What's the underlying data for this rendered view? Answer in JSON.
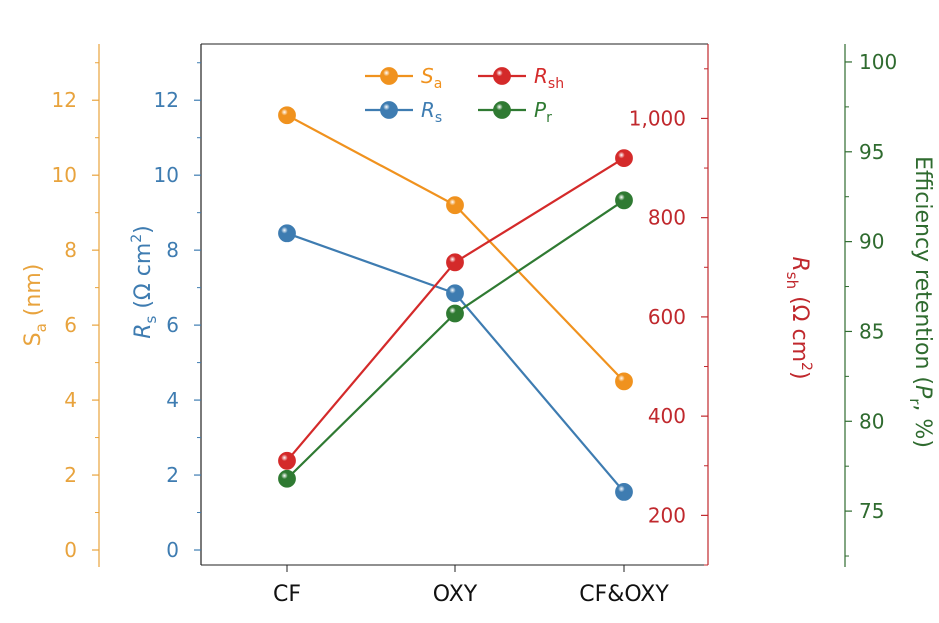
{
  "chart_data": {
    "type": "line",
    "categories": [
      "CF",
      "OXY",
      "CF&OXY"
    ],
    "axes": {
      "sa": {
        "label_main": "S",
        "label_sub": "a",
        "label_rest": " (nm)",
        "range": [
          -0.4,
          13.5
        ],
        "ticks": [
          "0",
          "2",
          "4",
          "6",
          "8",
          "10",
          "12"
        ],
        "color": "#E8A33D"
      },
      "rs": {
        "label_main": "R",
        "label_sub": "s",
        "label_rest_a": " (Ω cm",
        "label_sup": "2",
        "label_rest_b": ")",
        "range": [
          -0.4,
          13.5
        ],
        "ticks": [
          "0",
          "2",
          "4",
          "6",
          "8",
          "10",
          "12"
        ],
        "color": "#3E7CB1"
      },
      "rsh": {
        "label_main": "R",
        "label_sub": "sh",
        "label_rest_a": " (Ω cm",
        "label_sup": "2",
        "label_rest_b": ")",
        "range": [
          100,
          1150
        ],
        "ticks": [
          "200",
          "400",
          "600",
          "800",
          "1,000"
        ],
        "color": "#C0282D"
      },
      "pr": {
        "label_a": "Efficiency retention (",
        "label_italic": "P",
        "label_sub": "r",
        "label_b": ", %)",
        "range": [
          72,
          101
        ],
        "ticks": [
          "75",
          "80",
          "85",
          "90",
          "95",
          "100"
        ],
        "color": "#2F6B2F"
      }
    },
    "series": [
      {
        "key": "sa",
        "name_main": "S",
        "name_sub": "a",
        "values": [
          11.6,
          9.2,
          4.5
        ],
        "axis": "sa",
        "color": "#F0921E"
      },
      {
        "key": "rs",
        "name_main": "R",
        "name_sub": "s",
        "values": [
          8.45,
          6.85,
          1.55
        ],
        "axis": "rs",
        "color": "#3E7CB1"
      },
      {
        "key": "rsh",
        "name_main": "R",
        "name_sub": "sh",
        "values": [
          310,
          710,
          920
        ],
        "axis": "rsh",
        "color": "#D42A2A"
      },
      {
        "key": "pr",
        "name_main": "P",
        "name_sub": "r",
        "values": [
          76.8,
          86.0,
          92.3
        ],
        "axis": "pr",
        "color": "#2F7A32"
      }
    ],
    "grid": false,
    "legend_placement": "top-center"
  }
}
